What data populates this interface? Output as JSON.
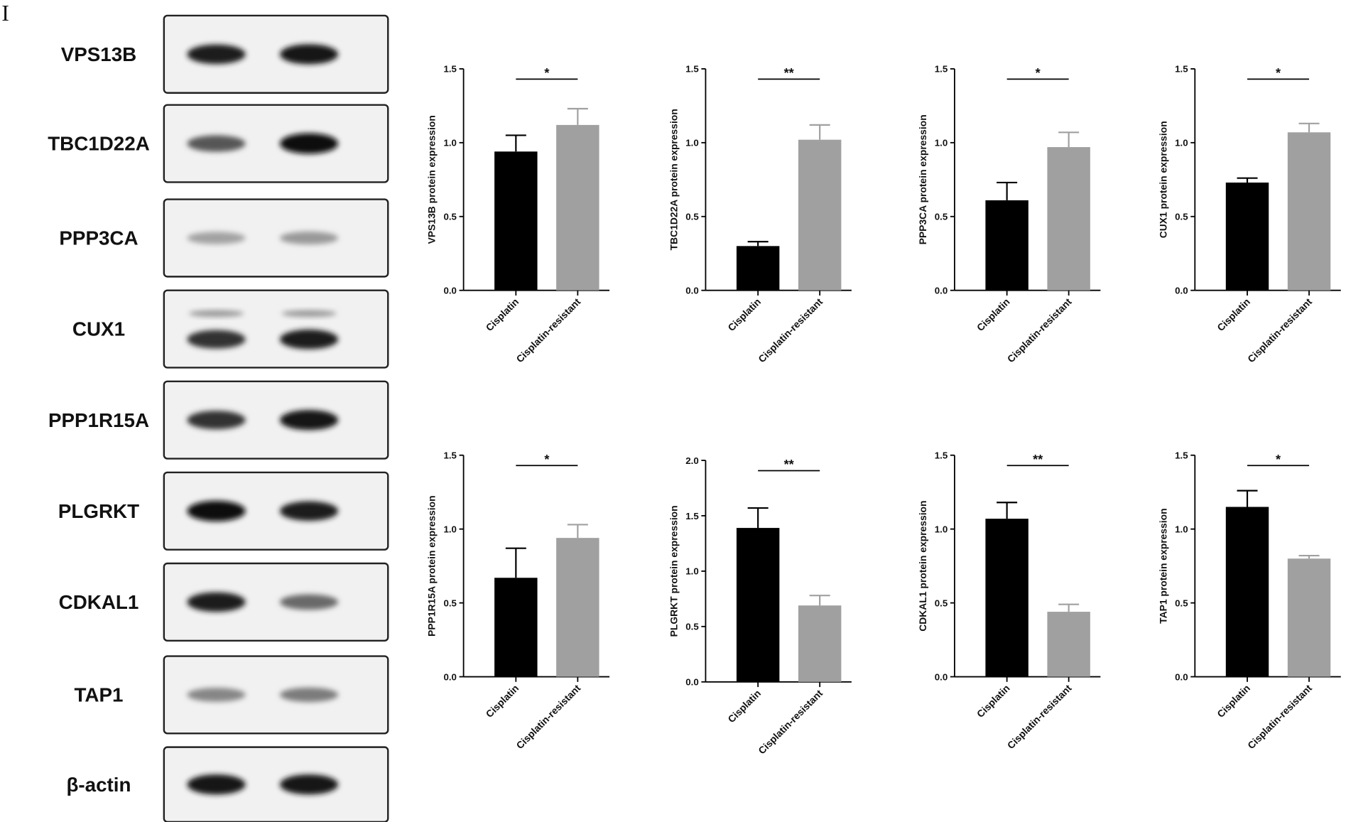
{
  "panel_label": "I",
  "blots": [
    "VPS13B",
    "TBC1D22A",
    "PPP3CA",
    "CUX1",
    "PPP1R15A",
    "PLGRKT",
    "CDKAL1",
    "TAP1",
    "β-actin"
  ],
  "chart_data": [
    {
      "type": "bar",
      "ylabel": "VPS13B protein expression",
      "categories": [
        "Cisplatin",
        "Cisplatin-resistant"
      ],
      "values": [
        0.94,
        1.12
      ],
      "errors": [
        0.11,
        0.11
      ],
      "colors": [
        "#000000",
        "#a0a0a0"
      ],
      "significance": "*",
      "ylim": [
        0,
        1.5
      ],
      "yticks": [
        {
          "value": 0,
          "label": "0.0"
        },
        {
          "value": 0.5,
          "label": "0.5"
        },
        {
          "value": 1,
          "label": "1.0"
        },
        {
          "value": 1.5,
          "label": "1.5"
        }
      ]
    },
    {
      "type": "bar",
      "ylabel": "TBC1D22A protein expression",
      "categories": [
        "Cisplatin",
        "Cisplatin-resistant"
      ],
      "values": [
        0.3,
        1.02
      ],
      "errors": [
        0.03,
        0.1
      ],
      "colors": [
        "#000000",
        "#a0a0a0"
      ],
      "significance": "**",
      "ylim": [
        0,
        1.5
      ],
      "yticks": [
        {
          "value": 0,
          "label": "0.0"
        },
        {
          "value": 0.5,
          "label": "0.5"
        },
        {
          "value": 1,
          "label": "1.0"
        },
        {
          "value": 1.5,
          "label": "1.5"
        }
      ]
    },
    {
      "type": "bar",
      "ylabel": "PPP3CA protein expression",
      "categories": [
        "Cisplatin",
        "Cisplatin-resistant"
      ],
      "values": [
        0.61,
        0.97
      ],
      "errors": [
        0.12,
        0.1
      ],
      "colors": [
        "#000000",
        "#a0a0a0"
      ],
      "significance": "*",
      "ylim": [
        0,
        1.5
      ],
      "yticks": [
        {
          "value": 0,
          "label": "0.0"
        },
        {
          "value": 0.5,
          "label": "0.5"
        },
        {
          "value": 1,
          "label": "1.0"
        },
        {
          "value": 1.5,
          "label": "1.5"
        }
      ]
    },
    {
      "type": "bar",
      "ylabel": "CUX1 protein expression",
      "categories": [
        "Cisplatin",
        "Cisplatin-resistant"
      ],
      "values": [
        0.73,
        1.07
      ],
      "errors": [
        0.03,
        0.06
      ],
      "colors": [
        "#000000",
        "#a0a0a0"
      ],
      "significance": "*",
      "ylim": [
        0,
        1.5
      ],
      "yticks": [
        {
          "value": 0,
          "label": "0.0"
        },
        {
          "value": 0.5,
          "label": "0.5"
        },
        {
          "value": 1,
          "label": "1.0"
        },
        {
          "value": 1.5,
          "label": "1.5"
        }
      ]
    },
    {
      "type": "bar",
      "ylabel": "PPP1R15A protein expression",
      "categories": [
        "Cisplatin",
        "Cisplatin-resistant"
      ],
      "values": [
        0.67,
        0.94
      ],
      "errors": [
        0.2,
        0.09
      ],
      "colors": [
        "#000000",
        "#a0a0a0"
      ],
      "significance": "*",
      "ylim": [
        0,
        1.5
      ],
      "yticks": [
        {
          "value": 0,
          "label": "0.0"
        },
        {
          "value": 0.5,
          "label": "0.5"
        },
        {
          "value": 1,
          "label": "1.0"
        },
        {
          "value": 1.5,
          "label": "1.5"
        }
      ]
    },
    {
      "type": "bar",
      "ylabel": "PLGRKT protein expression",
      "categories": [
        "Cisplatin",
        "Cisplatin-resistant"
      ],
      "values": [
        1.39,
        0.69
      ],
      "errors": [
        0.18,
        0.09
      ],
      "colors": [
        "#000000",
        "#a0a0a0"
      ],
      "significance": "**",
      "ylim": [
        0,
        2
      ],
      "yticks": [
        {
          "value": 0,
          "label": "0.0"
        },
        {
          "value": 0.5,
          "label": "0.5"
        },
        {
          "value": 1,
          "label": "1.0"
        },
        {
          "value": 1.5,
          "label": "1.5"
        },
        {
          "value": 2,
          "label": "2.0"
        }
      ]
    },
    {
      "type": "bar",
      "ylabel": "CDKAL1 protein expression",
      "categories": [
        "Cisplatin",
        "Cisplatin-resistant"
      ],
      "values": [
        1.07,
        0.44
      ],
      "errors": [
        0.11,
        0.05
      ],
      "colors": [
        "#000000",
        "#a0a0a0"
      ],
      "significance": "**",
      "ylim": [
        0,
        1.5
      ],
      "yticks": [
        {
          "value": 0,
          "label": "0.0"
        },
        {
          "value": 0.5,
          "label": "0.5"
        },
        {
          "value": 1,
          "label": "1.0"
        },
        {
          "value": 1.5,
          "label": "1.5"
        }
      ]
    },
    {
      "type": "bar",
      "ylabel": "TAP1 protein expression",
      "categories": [
        "Cisplatin",
        "Cisplatin-resistant"
      ],
      "values": [
        1.15,
        0.8
      ],
      "errors": [
        0.11,
        0.02
      ],
      "colors": [
        "#000000",
        "#a0a0a0"
      ],
      "significance": "*",
      "ylim": [
        0,
        1.5
      ],
      "yticks": [
        {
          "value": 0,
          "label": "0.0"
        },
        {
          "value": 0.5,
          "label": "0.5"
        },
        {
          "value": 1,
          "label": "1.0"
        },
        {
          "value": 1.5,
          "label": "1.5"
        }
      ]
    }
  ]
}
